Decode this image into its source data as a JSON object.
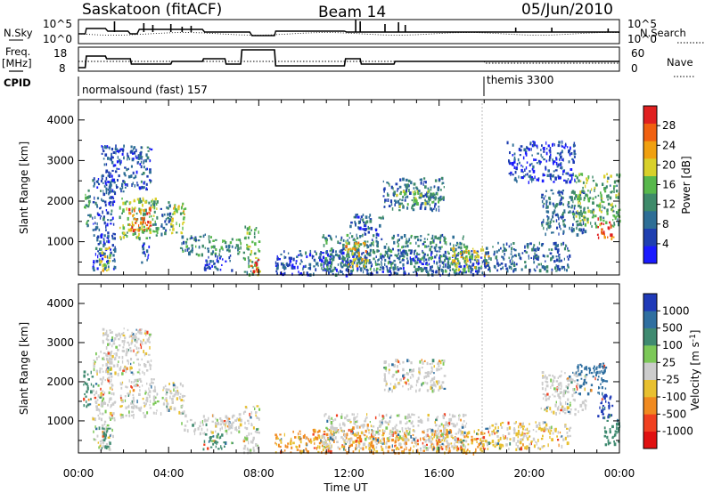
{
  "header": {
    "station": "Saskatoon (fitACF)",
    "beam": "Beam 14",
    "date": "05/Jun/2010"
  },
  "summary_panel": {
    "left_labels": {
      "nsky": "N.Sky",
      "freq_line1": "Freq.",
      "freq_line2": "[MHz]",
      "cpid": "CPID"
    },
    "right_labels": {
      "nsearch": "N.Search",
      "nave": "Nave"
    },
    "noise_ticks_left": [
      "10^5",
      "10^0"
    ],
    "noise_ticks_right": [
      "10^5",
      "10^0"
    ],
    "freq_ticks": [
      "18",
      "8"
    ],
    "nave_ticks": [
      "60",
      "0"
    ]
  },
  "cpid_labels": [
    {
      "start_hour": 0.0,
      "text": "normalsound (fast) 157"
    },
    {
      "start_hour": 18.03,
      "text": "themis 3300"
    }
  ],
  "time_axis": {
    "label": "Time UT",
    "range_hours": [
      0,
      24
    ],
    "ticks": [
      "00:00",
      "04:00",
      "08:00",
      "12:00",
      "16:00",
      "20:00",
      "00:00"
    ]
  },
  "range_axis": {
    "label": "Slant Range [km]",
    "range_km": [
      180,
      4500
    ],
    "ticks": [
      "1000",
      "2000",
      "3000",
      "4000"
    ]
  },
  "power_scale": {
    "label": "Power [dB]",
    "ticks": [
      "4",
      "8",
      "12",
      "16",
      "20",
      "24",
      "28"
    ],
    "colors": [
      "#1a1aff",
      "#1f3fb0",
      "#2e6e96",
      "#3e8a6a",
      "#58b84c",
      "#d8d02a",
      "#f0a010",
      "#f06010",
      "#e02020"
    ]
  },
  "velocity_scale": {
    "label": "Velocity [m s^-1]",
    "ticks": [
      "1000",
      "500",
      "100",
      "25",
      "-25",
      "-100",
      "-500",
      "-1000"
    ],
    "colors": [
      "#1f3ab8",
      "#2f6fa0",
      "#3f8a70",
      "#7cc858",
      "#cccccc",
      "#e8c030",
      "#f08a20",
      "#f04020",
      "#e01010"
    ]
  },
  "chart_data": [
    {
      "type": "heatmap",
      "title": "Power",
      "xlabel": "Time UT",
      "ylabel": "Slant Range [km]",
      "xlim_hours": [
        0,
        24
      ],
      "ylim_km": [
        180,
        4500
      ],
      "colorbar": {
        "label": "Power [dB]",
        "range": [
          0,
          30
        ]
      },
      "gaps_hours": [
        [
          8.05,
          8.7
        ]
      ],
      "echo_regions": [
        {
          "t": [
            0.2,
            0.55
          ],
          "r": [
            1400,
            2300
          ],
          "value": 12
        },
        {
          "t": [
            0.6,
            1.6
          ],
          "r": [
            300,
            2800
          ],
          "value": 6
        },
        {
          "t": [
            0.9,
            1.4
          ],
          "r": [
            300,
            900
          ],
          "value": 18
        },
        {
          "t": [
            1.0,
            2.0
          ],
          "r": [
            2200,
            3400
          ],
          "value": 5
        },
        {
          "t": [
            2.0,
            3.2
          ],
          "r": [
            2300,
            3400
          ],
          "value": 7
        },
        {
          "t": [
            1.8,
            3.5
          ],
          "r": [
            1100,
            2100
          ],
          "value": 14
        },
        {
          "t": [
            2.2,
            3.2
          ],
          "r": [
            1300,
            1900
          ],
          "value": 24
        },
        {
          "t": [
            3.6,
            4.1
          ],
          "r": [
            1200,
            2000
          ],
          "value": 9
        },
        {
          "t": [
            4.0,
            4.7
          ],
          "r": [
            1200,
            2000
          ],
          "value": 17
        },
        {
          "t": [
            2.7,
            3.1
          ],
          "r": [
            500,
            1000
          ],
          "value": 6
        },
        {
          "t": [
            4.5,
            6.0
          ],
          "r": [
            700,
            1200
          ],
          "value": 10
        },
        {
          "t": [
            6.0,
            7.2
          ],
          "r": [
            700,
            1100
          ],
          "value": 12
        },
        {
          "t": [
            5.5,
            6.8
          ],
          "r": [
            300,
            700
          ],
          "value": 6
        },
        {
          "t": [
            7.3,
            8.0
          ],
          "r": [
            200,
            1400
          ],
          "value": 14
        },
        {
          "t": [
            7.6,
            8.0
          ],
          "r": [
            200,
            600
          ],
          "value": 28
        },
        {
          "t": [
            8.7,
            18.0
          ],
          "r": [
            200,
            800
          ],
          "value": 6
        },
        {
          "t": [
            10.8,
            17.2
          ],
          "r": [
            300,
            1200
          ],
          "value": 10
        },
        {
          "t": [
            11.8,
            12.8
          ],
          "r": [
            400,
            1000
          ],
          "value": 20
        },
        {
          "t": [
            12.0,
            13.5
          ],
          "r": [
            1200,
            1700
          ],
          "value": 7
        },
        {
          "t": [
            13.5,
            16.2
          ],
          "r": [
            1800,
            2600
          ],
          "value": 8
        },
        {
          "t": [
            14.0,
            16.0
          ],
          "r": [
            1900,
            2300
          ],
          "value": 14
        },
        {
          "t": [
            16.5,
            18.2
          ],
          "r": [
            300,
            900
          ],
          "value": 18
        },
        {
          "t": [
            18.0,
            21.8
          ],
          "r": [
            300,
            1000
          ],
          "value": 8
        },
        {
          "t": [
            20.5,
            22.5
          ],
          "r": [
            1200,
            2300
          ],
          "value": 9
        },
        {
          "t": [
            22.0,
            24.0
          ],
          "r": [
            1400,
            2700
          ],
          "value": 14
        },
        {
          "t": [
            23.0,
            23.7
          ],
          "r": [
            1100,
            1600
          ],
          "value": 26
        },
        {
          "t": [
            19.0,
            22.0
          ],
          "r": [
            2500,
            3500
          ],
          "value": 5
        }
      ]
    },
    {
      "type": "heatmap",
      "title": "Velocity",
      "xlabel": "Time UT",
      "ylabel": "Slant Range [km]",
      "xlim_hours": [
        0,
        24
      ],
      "ylim_km": [
        180,
        4500
      ],
      "colorbar": {
        "label": "Velocity [m s^-1]",
        "range": [
          -1000,
          1000
        ]
      },
      "gaps_hours": [
        [
          8.05,
          8.7
        ]
      ],
      "echo_regions": [
        {
          "t": [
            0.2,
            0.6
          ],
          "r": [
            1400,
            2300
          ],
          "value": 120
        },
        {
          "t": [
            0.6,
            1.6
          ],
          "r": [
            300,
            2800
          ],
          "value": 0
        },
        {
          "t": [
            0.9,
            1.4
          ],
          "r": [
            300,
            900
          ],
          "value": 150
        },
        {
          "t": [
            1.0,
            3.2
          ],
          "r": [
            2200,
            3400
          ],
          "value": 0
        },
        {
          "t": [
            1.8,
            3.5
          ],
          "r": [
            1100,
            2100
          ],
          "value": 0
        },
        {
          "t": [
            3.6,
            4.7
          ],
          "r": [
            1200,
            2000
          ],
          "value": 0
        },
        {
          "t": [
            4.5,
            7.2
          ],
          "r": [
            700,
            1200
          ],
          "value": 0
        },
        {
          "t": [
            5.5,
            6.8
          ],
          "r": [
            300,
            700
          ],
          "value": 80
        },
        {
          "t": [
            7.3,
            8.0
          ],
          "r": [
            200,
            1400
          ],
          "value": 0
        },
        {
          "t": [
            8.7,
            18.0
          ],
          "r": [
            200,
            800
          ],
          "value": -60
        },
        {
          "t": [
            10.8,
            17.2
          ],
          "r": [
            300,
            1200
          ],
          "value": 0
        },
        {
          "t": [
            13.5,
            16.2
          ],
          "r": [
            1800,
            2600
          ],
          "value": 0
        },
        {
          "t": [
            18.0,
            21.8
          ],
          "r": [
            300,
            1000
          ],
          "value": -30
        },
        {
          "t": [
            20.5,
            22.5
          ],
          "r": [
            1200,
            2300
          ],
          "value": 0
        },
        {
          "t": [
            22.0,
            23.4
          ],
          "r": [
            1700,
            2500
          ],
          "value": 600
        },
        {
          "t": [
            23.0,
            23.7
          ],
          "r": [
            1100,
            1700
          ],
          "value": 1000
        },
        {
          "t": [
            23.3,
            24.0
          ],
          "r": [
            400,
            1200
          ],
          "value": 150
        }
      ]
    }
  ]
}
